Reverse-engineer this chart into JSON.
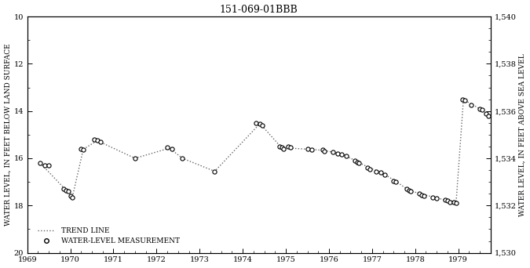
{
  "title": "151-069-01BBB",
  "ylabel_left": "WATER LEVEL, IN FEET BELOW LAND SURFACE",
  "ylabel_right": "WATER LEVEL, IN FEET ABOVE SEA LEVEL",
  "xlim": [
    1969.0,
    1979.75
  ],
  "ylim_left": [
    10,
    20
  ],
  "ylim_right": [
    1540,
    1530
  ],
  "xticks": [
    1969,
    1970,
    1971,
    1972,
    1973,
    1974,
    1975,
    1976,
    1977,
    1978,
    1979
  ],
  "yticks_left": [
    10,
    12,
    14,
    16,
    18,
    20
  ],
  "yticks_right": [
    1540,
    1538,
    1536,
    1534,
    1532,
    1530
  ],
  "measurements_x": [
    1969.3,
    1969.4,
    1969.5,
    1969.85,
    1969.9,
    1969.95,
    1970.0,
    1970.05,
    1970.25,
    1970.3,
    1970.55,
    1970.62,
    1970.7,
    1971.5,
    1972.25,
    1972.35,
    1972.6,
    1973.35,
    1974.3,
    1974.4,
    1974.45,
    1974.85,
    1974.9,
    1974.95,
    1975.05,
    1975.1,
    1975.5,
    1975.6,
    1975.85,
    1975.9,
    1976.1,
    1976.2,
    1976.3,
    1976.4,
    1976.6,
    1976.65,
    1976.7,
    1976.9,
    1976.95,
    1977.1,
    1977.2,
    1977.3,
    1977.5,
    1977.55,
    1977.8,
    1977.85,
    1977.9,
    1978.1,
    1978.15,
    1978.2,
    1978.4,
    1978.5,
    1978.7,
    1978.75,
    1978.8,
    1978.9,
    1978.95,
    1979.1,
    1979.15,
    1979.3,
    1979.5,
    1979.55,
    1979.65,
    1979.7
  ],
  "measurements_y": [
    16.2,
    16.3,
    16.3,
    17.3,
    17.35,
    17.4,
    17.6,
    17.65,
    15.6,
    15.65,
    15.2,
    15.25,
    15.3,
    16.0,
    15.55,
    15.6,
    16.0,
    16.55,
    14.5,
    14.55,
    14.6,
    15.5,
    15.55,
    15.6,
    15.5,
    15.55,
    15.6,
    15.65,
    15.65,
    15.7,
    15.75,
    15.8,
    15.85,
    15.9,
    16.1,
    16.15,
    16.2,
    16.4,
    16.45,
    16.55,
    16.6,
    16.7,
    16.95,
    17.0,
    17.3,
    17.35,
    17.4,
    17.5,
    17.55,
    17.6,
    17.65,
    17.7,
    17.75,
    17.8,
    17.85,
    17.85,
    17.9,
    13.5,
    13.55,
    13.75,
    13.9,
    13.95,
    14.1,
    14.2
  ],
  "trend_x": [
    1969.3,
    1969.9,
    1970.05,
    1970.3,
    1970.62,
    1971.5,
    1972.3,
    1972.6,
    1973.35,
    1974.4,
    1974.9,
    1975.55,
    1975.9,
    1976.3,
    1976.65,
    1976.95,
    1977.2,
    1977.55,
    1977.85,
    1978.15,
    1978.5,
    1978.75,
    1978.95,
    1979.12,
    1979.52,
    1979.67
  ],
  "trend_y": [
    16.2,
    17.35,
    17.62,
    15.62,
    15.25,
    16.0,
    15.57,
    16.0,
    16.55,
    14.53,
    15.55,
    15.62,
    15.67,
    15.82,
    16.13,
    16.42,
    16.58,
    16.97,
    17.35,
    17.52,
    17.67,
    17.8,
    17.87,
    13.52,
    13.92,
    14.15
  ],
  "bg_color": "#ffffff",
  "trend_color": "#666666",
  "marker_color": "#000000",
  "legend_trend": "TREND LINE",
  "legend_meas": "WATER-LEVEL MEASUREMENT"
}
